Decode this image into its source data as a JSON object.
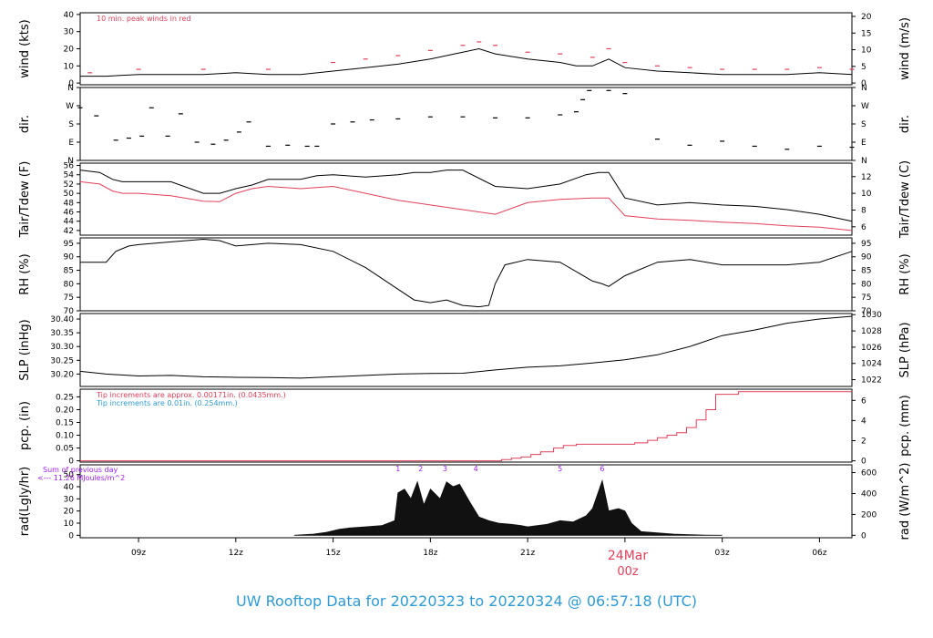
{
  "title": "UW Rooftop Data for 20220323  to  20220324 @ 06:57:18  (UTC)",
  "colors": {
    "red": "#e0405a",
    "blue": "#2f9ad6",
    "purple": "#a020f0",
    "title": "#2f9ad6"
  },
  "chart_data": {
    "type": "line",
    "x_ticks": [
      "09z",
      "12z",
      "15z",
      "18z",
      "21z",
      "00z",
      "03z",
      "06z"
    ],
    "x_tick_hours": [
      9,
      12,
      15,
      18,
      21,
      24,
      27,
      30
    ],
    "x_range_hours": [
      7.2,
      31.0
    ],
    "date_label": "24Mar",
    "date_sublabel": "00z",
    "panels": [
      {
        "id": "wind",
        "ylabel": "wind (kts)",
        "ylabel_right": "wind (m/s)",
        "ylim": [
          -1,
          41
        ],
        "yticks": [
          0,
          10,
          20,
          30,
          40
        ],
        "yticks_right": [
          0,
          5,
          10,
          15,
          20
        ],
        "right_factor": 1.943844,
        "note": "10 min. peak winds in red",
        "series": [
          {
            "name": "wind speed",
            "color": "#000000",
            "style": "line",
            "x": [
              7.2,
              8,
              9,
              10,
              11,
              12,
              13,
              14,
              15,
              16,
              17,
              18,
              18.5,
              19,
              19.5,
              20,
              21,
              22,
              22.5,
              23,
              23.5,
              24,
              25,
              26,
              27,
              28,
              29,
              30,
              31
            ],
            "y": [
              4,
              4,
              5,
              5,
              5,
              6,
              5,
              5,
              7,
              9,
              11,
              14,
              16,
              18,
              20,
              17,
              14,
              12,
              10,
              10,
              14,
              9,
              7,
              6,
              5,
              5,
              5,
              6,
              5
            ]
          },
          {
            "name": "peak winds",
            "color": "#e0405a",
            "style": "dash",
            "x": [
              7.5,
              9,
              11,
              13,
              15,
              16,
              17,
              18,
              19,
              19.5,
              20,
              21,
              22,
              23,
              23.5,
              24,
              25,
              26,
              27,
              28,
              29,
              30,
              31
            ],
            "y": [
              6,
              8,
              8,
              8,
              12,
              14,
              16,
              19,
              22,
              24,
              22,
              18,
              17,
              15,
              20,
              12,
              10,
              9,
              8,
              8,
              8,
              9,
              8
            ]
          }
        ]
      },
      {
        "id": "dir",
        "ylabel": "dir.",
        "ylabel_right": "dir.",
        "ylim": [
          0,
          360
        ],
        "ytick_values": [
          0,
          90,
          180,
          270,
          360
        ],
        "ytick_labels": [
          "N",
          "E",
          "S",
          "W",
          "N"
        ],
        "series": [
          {
            "name": "direction",
            "color": "#000000",
            "style": "dash",
            "x": [
              7.2,
              7.7,
              8.3,
              8.7,
              9.1,
              9.4,
              9.9,
              10.3,
              10.8,
              11.3,
              11.7,
              12.1,
              12.4,
              13.0,
              13.6,
              14.2,
              14.5,
              15.0,
              15.6,
              16.2,
              17,
              18,
              19,
              20,
              21,
              22,
              22.5,
              22.7,
              22.9,
              23.5,
              24,
              25,
              26,
              27,
              28,
              29,
              30,
              31
            ],
            "y": [
              260,
              220,
              100,
              110,
              120,
              260,
              120,
              230,
              90,
              80,
              100,
              140,
              190,
              70,
              75,
              70,
              70,
              180,
              190,
              200,
              205,
              215,
              215,
              210,
              210,
              225,
              240,
              300,
              345,
              345,
              330,
              105,
              75,
              95,
              70,
              55,
              70,
              65
            ]
          }
        ]
      },
      {
        "id": "temp",
        "ylabel": "Tair/Tdew (F)",
        "ylabel_right": "Tair/Tdew (C)",
        "ylim": [
          41,
          56.5
        ],
        "yticks": [
          42,
          44,
          46,
          48,
          50,
          52,
          54,
          56
        ],
        "yticks_right": [
          6,
          8,
          10,
          12
        ],
        "right_factor": 1.8,
        "right_offset": 32,
        "series": [
          {
            "name": "Tair",
            "color": "#000000",
            "style": "line",
            "x": [
              7.2,
              7.8,
              8.2,
              8.5,
              9,
              10,
              11,
              11.5,
              12,
              12.5,
              13,
              14,
              14.5,
              15,
              16,
              17,
              17.5,
              18,
              18.5,
              19,
              20,
              21,
              22,
              22.8,
              23.2,
              23.5,
              24,
              25,
              26,
              27,
              28,
              29,
              30,
              31
            ],
            "y": [
              55,
              54.5,
              53,
              52.5,
              52.5,
              52.5,
              50,
              50,
              51,
              51.8,
              53,
              53,
              53.8,
              54,
              53.5,
              54,
              54.5,
              54.5,
              55,
              55,
              51.5,
              51,
              52,
              54,
              54.5,
              54.5,
              49,
              47.5,
              48,
              47.5,
              47.2,
              46.5,
              45.5,
              44
            ]
          },
          {
            "name": "Tdew",
            "color": "#e0405a",
            "style": "line",
            "x": [
              7.2,
              7.8,
              8.2,
              8.5,
              9,
              10,
              11,
              11.5,
              12,
              12.5,
              13,
              14,
              15,
              16,
              17,
              18,
              19,
              20,
              21,
              22,
              23,
              23.5,
              24,
              25,
              26,
              27,
              28,
              29,
              30,
              31
            ],
            "y": [
              52.5,
              52,
              50.5,
              50,
              50,
              49.5,
              48.3,
              48.2,
              50,
              51,
              51.5,
              51,
              51.5,
              50,
              48.5,
              47.5,
              46.5,
              45.5,
              48,
              48.7,
              49,
              49,
              45.2,
              44.5,
              44.2,
              43.8,
              43.5,
              43,
              42.7,
              42
            ]
          }
        ]
      },
      {
        "id": "rh",
        "ylabel": "RH (%)",
        "ylabel_right": "RH (%)",
        "ylim": [
          70,
          97
        ],
        "yticks": [
          70,
          75,
          80,
          85,
          90,
          95
        ],
        "yticks_right": [
          70,
          75,
          80,
          85,
          90,
          95
        ],
        "series": [
          {
            "name": "RH",
            "color": "#000000",
            "style": "line",
            "x": [
              7.2,
              8,
              8.3,
              8.7,
              9,
              10,
              11,
              11.5,
              12,
              13,
              14,
              15,
              16,
              17,
              17.5,
              18,
              18.5,
              19,
              19.5,
              19.8,
              20,
              20.3,
              21,
              22,
              23,
              23.3,
              23.5,
              24,
              25,
              26,
              27,
              28,
              29,
              30,
              31
            ],
            "y": [
              88,
              88,
              92,
              94,
              94.5,
              95.5,
              96.5,
              96,
              94,
              95,
              94.5,
              92,
              86,
              78,
              74,
              73,
              74,
              72,
              71.5,
              72,
              80,
              87,
              89,
              88,
              81,
              80,
              79,
              83,
              88,
              89,
              87,
              87,
              87,
              88,
              92
            ]
          }
        ]
      },
      {
        "id": "slp",
        "ylabel": "SLP (inHg)",
        "ylabel_right": "SLP (hPa)",
        "ylim": [
          30.155,
          30.42
        ],
        "yticks": [
          30.2,
          30.25,
          30.3,
          30.35,
          30.4
        ],
        "yticks_right": [
          1022,
          1024,
          1026,
          1028,
          1030
        ],
        "right_factor": 0.02953,
        "series": [
          {
            "name": "SLP",
            "color": "#000000",
            "style": "line",
            "x": [
              7.2,
              8,
              9,
              10,
              11,
              12,
              13,
              14,
              15,
              16,
              17,
              18,
              19,
              20,
              21,
              22,
              23,
              24,
              25,
              26,
              27,
              28,
              29,
              30,
              31
            ],
            "y": [
              30.21,
              30.2,
              30.193,
              30.195,
              30.19,
              30.188,
              30.187,
              30.185,
              30.19,
              30.195,
              30.2,
              30.202,
              30.203,
              30.215,
              30.225,
              30.23,
              30.24,
              30.252,
              30.27,
              30.3,
              30.34,
              30.36,
              30.385,
              30.4,
              30.41
            ]
          }
        ]
      },
      {
        "id": "pcp",
        "ylabel": "pcp. (in)",
        "ylabel_right": "pcp. (mm)",
        "ylim": [
          -0.005,
          0.28
        ],
        "yticks": [
          0,
          0.05,
          0.1,
          0.15,
          0.2,
          0.25
        ],
        "yticks_right": [
          0,
          2,
          4,
          6
        ],
        "right_factor": 0.03937,
        "notes": [
          {
            "text": "Tip increments are approx. 0.00171in. (0.0435mm.)",
            "color": "red"
          },
          {
            "text": "Tip increments are 0.01in. (0.254mm.)",
            "color": "blue"
          }
        ],
        "series": [
          {
            "name": "pcp",
            "color": "#e0405a",
            "style": "step",
            "x": [
              7.2,
              19.9,
              20.2,
              20.5,
              20.8,
              21.1,
              21.4,
              21.8,
              22.1,
              22.5,
              23.0,
              23.5,
              24.0,
              24.3,
              24.7,
              25.0,
              25.3,
              25.6,
              25.9,
              26.2,
              26.5,
              26.8,
              27.0,
              27.5,
              28,
              29,
              30,
              31
            ],
            "y": [
              0,
              0,
              0.005,
              0.01,
              0.015,
              0.025,
              0.035,
              0.05,
              0.06,
              0.065,
              0.065,
              0.065,
              0.065,
              0.07,
              0.08,
              0.09,
              0.1,
              0.11,
              0.13,
              0.16,
              0.2,
              0.26,
              0.26,
              0.27,
              0.27,
              0.27,
              0.27,
              0.27
            ]
          }
        ]
      },
      {
        "id": "rad",
        "ylabel": "rad(Lgly/hr)",
        "ylabel_right": "rad (W/m^2)",
        "ylim": [
          -2,
          58
        ],
        "yticks": [
          0,
          10,
          20,
          30,
          40,
          50
        ],
        "yticks_right": [
          0,
          200,
          400,
          600
        ],
        "right_factor": 0.08598,
        "note_lines": [
          "Sum of previous day",
          "<--- 11.26 MJoules/m^2"
        ],
        "hour_markers": [
          {
            "label": "1",
            "x": 17.0
          },
          {
            "label": "2",
            "x": 17.7
          },
          {
            "label": "3",
            "x": 18.45
          },
          {
            "label": "4",
            "x": 19.4
          },
          {
            "label": "5",
            "x": 22.0
          },
          {
            "label": "6",
            "x": 23.3
          }
        ],
        "series": [
          {
            "name": "radiation",
            "color": "#111111",
            "style": "bars",
            "x": [
              13.8,
              14.4,
              14.8,
              15.2,
              15.5,
              16,
              16.5,
              16.9,
              17.0,
              17.2,
              17.4,
              17.6,
              17.8,
              18.0,
              18.3,
              18.5,
              18.7,
              18.9,
              19.2,
              19.5,
              19.8,
              20.1,
              20.5,
              20.8,
              21.0,
              21.3,
              21.6,
              22.0,
              22.4,
              22.8,
              23.0,
              23.3,
              23.5,
              23.8,
              24.0,
              24.2,
              24.5,
              25.0,
              25.5,
              26.0,
              26.5,
              27.0
            ],
            "y": [
              0,
              1,
              2.5,
              5,
              6,
              7,
              8,
              12,
              35,
              38,
              30,
              44,
              25,
              38,
              30,
              44,
              40,
              42,
              28,
              15,
              12,
              10,
              9,
              8,
              7,
              8,
              9,
              12,
              11,
              16,
              22,
              45,
              20,
              22,
              20,
              10,
              3,
              2,
              1,
              0.5,
              0.2,
              0
            ]
          }
        ]
      }
    ]
  }
}
